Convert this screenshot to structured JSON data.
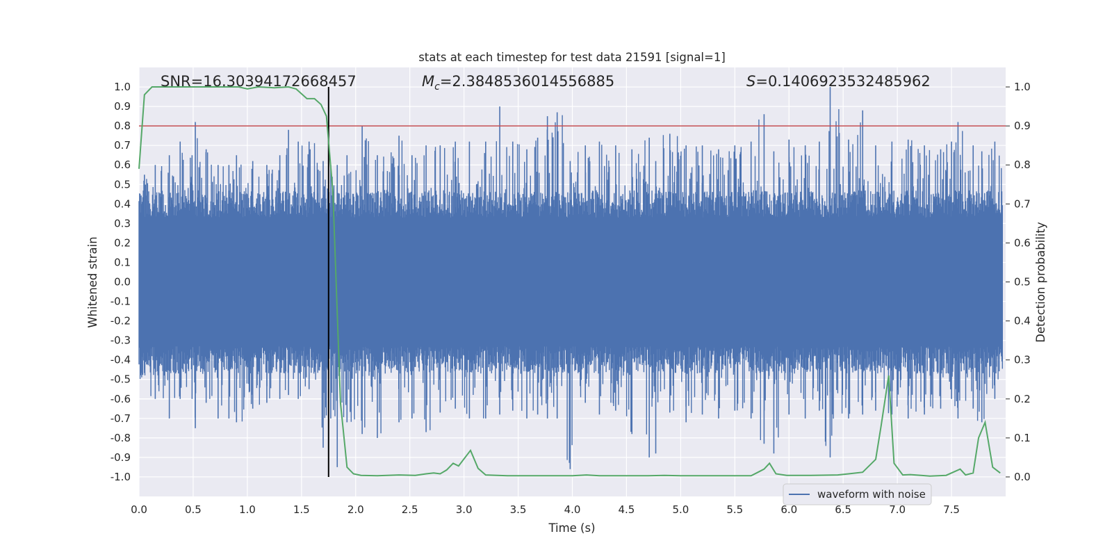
{
  "chart_data": {
    "type": "line",
    "title": "stats at each timestep for test data 21591 [signal=1]",
    "xlabel": "Time (s)",
    "ylabel": "Whitened strain",
    "y2label": "Detection probability",
    "xlim": [
      0.0,
      8.0
    ],
    "ylim": [
      -1.1,
      1.1
    ],
    "y2lim": [
      -0.05,
      1.05
    ],
    "xticks": [
      "0.0",
      "0.5",
      "1.0",
      "1.5",
      "2.0",
      "2.5",
      "3.0",
      "3.5",
      "4.0",
      "4.5",
      "5.0",
      "5.5",
      "6.0",
      "6.5",
      "7.0",
      "7.5"
    ],
    "yticks": [
      "1.0",
      "0.9",
      "0.8",
      "0.7",
      "0.6",
      "0.5",
      "0.4",
      "0.3",
      "0.2",
      "0.1",
      "0.0",
      "-0.1",
      "-0.2",
      "-0.3",
      "-0.4",
      "-0.5",
      "-0.6",
      "-0.7",
      "-0.8",
      "-0.9",
      "-1.0"
    ],
    "y2ticks": [
      "1.0",
      "0.9",
      "0.8",
      "0.7",
      "0.6",
      "0.5",
      "0.4",
      "0.3",
      "0.2",
      "0.1",
      "0.0"
    ],
    "grid": true,
    "legend_position": "lower-right",
    "annotations": {
      "snr": "SNR=16.30394172668457",
      "mc_symbol": "M",
      "mc_subscript": "c",
      "mc_value": "=2.3848536014556885",
      "s_symbol": "S",
      "s_value": "=0.1406923532485962"
    },
    "threshold_y": 0.8,
    "event_time": 1.75,
    "series": [
      {
        "name": "waveform with noise",
        "color": "#4c72b0",
        "axis": "left",
        "band_range": [
          0.0,
          7.97
        ],
        "peak_samples": [
          {
            "x": 0.05,
            "y": [
              -0.45,
              0.55
            ]
          },
          {
            "x": 0.15,
            "y": [
              -0.6,
              0.6
            ]
          },
          {
            "x": 0.28,
            "y": [
              -0.7,
              0.65
            ]
          },
          {
            "x": 0.38,
            "y": [
              -0.6,
              0.72
            ]
          },
          {
            "x": 0.49,
            "y": [
              -0.6,
              0.65
            ]
          },
          {
            "x": 0.52,
            "y": [
              -0.75,
              0.82
            ]
          },
          {
            "x": 0.62,
            "y": [
              -0.62,
              0.68
            ]
          },
          {
            "x": 0.73,
            "y": [
              -0.7,
              0.6
            ]
          },
          {
            "x": 0.83,
            "y": [
              -0.7,
              0.6
            ]
          },
          {
            "x": 0.9,
            "y": [
              -0.72,
              0.65
            ]
          },
          {
            "x": 1.05,
            "y": [
              -0.65,
              0.62
            ]
          },
          {
            "x": 1.18,
            "y": [
              -0.62,
              0.6
            ]
          },
          {
            "x": 1.3,
            "y": [
              -0.6,
              0.65
            ]
          },
          {
            "x": 1.38,
            "y": [
              -0.58,
              0.78
            ]
          },
          {
            "x": 1.47,
            "y": [
              -0.6,
              0.72
            ]
          },
          {
            "x": 1.57,
            "y": [
              -0.55,
              0.72
            ]
          },
          {
            "x": 1.7,
            "y": [
              -0.85,
              0.62
            ]
          },
          {
            "x": 1.77,
            "y": [
              -0.7,
              0.6
            ]
          },
          {
            "x": 1.83,
            "y": [
              -0.95,
              0.6
            ]
          },
          {
            "x": 1.92,
            "y": [
              -0.72,
              0.65
            ]
          },
          {
            "x": 2.06,
            "y": [
              -0.78,
              0.8
            ]
          },
          {
            "x": 2.2,
            "y": [
              -0.8,
              0.65
            ]
          },
          {
            "x": 2.4,
            "y": [
              -0.72,
              0.75
            ]
          },
          {
            "x": 2.52,
            "y": [
              -0.7,
              0.65
            ]
          },
          {
            "x": 2.65,
            "y": [
              -0.77,
              0.7
            ]
          },
          {
            "x": 2.78,
            "y": [
              -0.67,
              0.7
            ]
          },
          {
            "x": 2.92,
            "y": [
              -0.65,
              0.72
            ]
          },
          {
            "x": 3.05,
            "y": [
              -0.7,
              0.72
            ]
          },
          {
            "x": 3.2,
            "y": [
              -0.7,
              0.72
            ]
          },
          {
            "x": 3.33,
            "y": [
              -0.68,
              0.9
            ]
          },
          {
            "x": 3.45,
            "y": [
              -0.66,
              0.72
            ]
          },
          {
            "x": 3.58,
            "y": [
              -0.7,
              0.68
            ]
          },
          {
            "x": 3.68,
            "y": [
              -0.68,
              0.74
            ]
          },
          {
            "x": 3.77,
            "y": [
              -0.7,
              0.85
            ]
          },
          {
            "x": 3.86,
            "y": [
              -0.7,
              0.87
            ]
          },
          {
            "x": 3.98,
            "y": [
              -0.96,
              0.62
            ]
          },
          {
            "x": 4.12,
            "y": [
              -0.62,
              0.7
            ]
          },
          {
            "x": 4.25,
            "y": [
              -0.68,
              0.72
            ]
          },
          {
            "x": 4.4,
            "y": [
              -0.66,
              0.7
            ]
          },
          {
            "x": 4.55,
            "y": [
              -0.78,
              0.68
            ]
          },
          {
            "x": 4.71,
            "y": [
              -0.9,
              0.74
            ]
          },
          {
            "x": 4.77,
            "y": [
              -0.88,
              0.62
            ]
          },
          {
            "x": 4.9,
            "y": [
              -0.67,
              0.76
            ]
          },
          {
            "x": 5.05,
            "y": [
              -0.72,
              0.7
            ]
          },
          {
            "x": 5.2,
            "y": [
              -0.68,
              0.7
            ]
          },
          {
            "x": 5.35,
            "y": [
              -0.7,
              0.68
            ]
          },
          {
            "x": 5.5,
            "y": [
              -0.66,
              0.7
            ]
          },
          {
            "x": 5.65,
            "y": [
              -0.7,
              0.72
            ]
          },
          {
            "x": 5.77,
            "y": [
              -0.83,
              0.86
            ]
          },
          {
            "x": 5.86,
            "y": [
              -0.88,
              0.67
            ]
          },
          {
            "x": 6.0,
            "y": [
              -0.68,
              0.73
            ]
          },
          {
            "x": 6.15,
            "y": [
              -0.7,
              0.7
            ]
          },
          {
            "x": 6.28,
            "y": [
              -0.66,
              0.72
            ]
          },
          {
            "x": 6.38,
            "y": [
              -0.9,
              1.0
            ]
          },
          {
            "x": 6.55,
            "y": [
              -0.7,
              0.73
            ]
          },
          {
            "x": 6.68,
            "y": [
              -0.68,
              0.88
            ]
          },
          {
            "x": 6.8,
            "y": [
              -0.66,
              0.7
            ]
          },
          {
            "x": 6.95,
            "y": [
              -0.68,
              0.72
            ]
          },
          {
            "x": 7.1,
            "y": [
              -0.7,
              0.73
            ]
          },
          {
            "x": 7.25,
            "y": [
              -0.68,
              0.7
            ]
          },
          {
            "x": 7.4,
            "y": [
              -0.65,
              0.68
            ]
          },
          {
            "x": 7.5,
            "y": [
              -0.6,
              0.72
            ]
          },
          {
            "x": 7.56,
            "y": [
              -0.7,
              0.82
            ]
          },
          {
            "x": 7.7,
            "y": [
              -0.65,
              0.7
            ]
          },
          {
            "x": 7.78,
            "y": [
              -0.72,
              0.67
            ]
          },
          {
            "x": 7.9,
            "y": [
              -0.6,
              0.72
            ]
          }
        ]
      },
      {
        "color": "#55a868",
        "axis": "right",
        "points": [
          [
            0.0,
            0.79
          ],
          [
            0.05,
            0.98
          ],
          [
            0.12,
            1.0
          ],
          [
            0.25,
            1.0
          ],
          [
            0.4,
            1.0
          ],
          [
            0.55,
            1.0
          ],
          [
            0.7,
            1.0
          ],
          [
            0.85,
            1.0
          ],
          [
            0.92,
            1.0
          ],
          [
            1.0,
            0.995
          ],
          [
            1.1,
            1.0
          ],
          [
            1.25,
            0.998
          ],
          [
            1.38,
            1.0
          ],
          [
            1.45,
            0.995
          ],
          [
            1.55,
            0.97
          ],
          [
            1.62,
            0.97
          ],
          [
            1.68,
            0.955
          ],
          [
            1.73,
            0.925
          ],
          [
            1.79,
            0.73
          ],
          [
            1.86,
            0.19
          ],
          [
            1.92,
            0.025
          ],
          [
            1.98,
            0.008
          ],
          [
            2.05,
            0.004
          ],
          [
            2.2,
            0.003
          ],
          [
            2.4,
            0.005
          ],
          [
            2.55,
            0.004
          ],
          [
            2.65,
            0.008
          ],
          [
            2.72,
            0.01
          ],
          [
            2.78,
            0.008
          ],
          [
            2.84,
            0.018
          ],
          [
            2.9,
            0.035
          ],
          [
            2.95,
            0.028
          ],
          [
            3.06,
            0.068
          ],
          [
            3.13,
            0.022
          ],
          [
            3.2,
            0.005
          ],
          [
            3.4,
            0.003
          ],
          [
            3.6,
            0.003
          ],
          [
            3.8,
            0.003
          ],
          [
            4.0,
            0.003
          ],
          [
            4.13,
            0.005
          ],
          [
            4.25,
            0.003
          ],
          [
            4.5,
            0.003
          ],
          [
            4.7,
            0.003
          ],
          [
            4.85,
            0.004
          ],
          [
            5.0,
            0.003
          ],
          [
            5.2,
            0.003
          ],
          [
            5.4,
            0.003
          ],
          [
            5.65,
            0.003
          ],
          [
            5.7,
            0.01
          ],
          [
            5.77,
            0.02
          ],
          [
            5.82,
            0.035
          ],
          [
            5.88,
            0.008
          ],
          [
            5.98,
            0.004
          ],
          [
            6.2,
            0.004
          ],
          [
            6.45,
            0.005
          ],
          [
            6.55,
            0.008
          ],
          [
            6.68,
            0.012
          ],
          [
            6.8,
            0.045
          ],
          [
            6.85,
            0.13
          ],
          [
            6.92,
            0.26
          ],
          [
            6.97,
            0.035
          ],
          [
            7.05,
            0.005
          ],
          [
            7.12,
            0.006
          ],
          [
            7.22,
            0.004
          ],
          [
            7.3,
            0.002
          ],
          [
            7.45,
            0.004
          ],
          [
            7.58,
            0.02
          ],
          [
            7.63,
            0.005
          ],
          [
            7.7,
            0.01
          ],
          [
            7.75,
            0.1
          ],
          [
            7.81,
            0.14
          ],
          [
            7.88,
            0.025
          ],
          [
            7.95,
            0.01
          ]
        ]
      }
    ]
  }
}
